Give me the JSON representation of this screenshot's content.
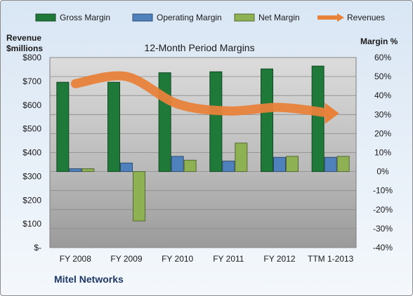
{
  "chart_data": {
    "type": "bar",
    "title": "12-Month Period Margins",
    "company": "Mitel Networks",
    "left_axis": {
      "label_line1": "Revenue",
      "label_line2": "$millions",
      "range": [
        0,
        800
      ],
      "ticks": [
        "$-",
        "$100",
        "$200",
        "$300",
        "$400",
        "$500",
        "$600",
        "$700",
        "$800"
      ]
    },
    "right_axis": {
      "label": "Margin %",
      "range": [
        -40,
        60
      ],
      "ticks": [
        "-40%",
        "-30%",
        "-20%",
        "-10%",
        "0%",
        "10%",
        "20%",
        "30%",
        "40%",
        "50%",
        "60%"
      ]
    },
    "categories": [
      "FY 2008",
      "FY 2009",
      "FY 2010",
      "FY 2011",
      "FY 2012",
      "TTM 1-2013"
    ],
    "series": [
      {
        "name": "Gross Margin",
        "axis": "right",
        "color": "#1f7a3a",
        "values": [
          47,
          47,
          52,
          52.5,
          54,
          55.5
        ]
      },
      {
        "name": "Operating Margin",
        "axis": "right",
        "color": "#4f81bd",
        "values": [
          1.5,
          4.5,
          8,
          5.5,
          7.5,
          7.5
        ]
      },
      {
        "name": "Net Margin",
        "axis": "right",
        "color": "#8db153",
        "values": [
          1.5,
          -26,
          6,
          15,
          8,
          8
        ]
      },
      {
        "name": "Revenues",
        "axis": "left",
        "type": "line",
        "color": "#e8823a",
        "values": [
          690,
          720,
          605,
          575,
          590,
          565
        ]
      }
    ],
    "legend_position": "top",
    "grid": true
  }
}
